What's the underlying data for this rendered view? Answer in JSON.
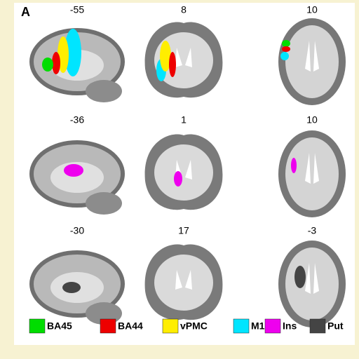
{
  "panel_label": "A",
  "slices": [
    [
      "-55",
      "8",
      "10"
    ],
    [
      "-36",
      "1",
      "10"
    ],
    [
      "-30",
      "17",
      "-3"
    ]
  ],
  "legend": [
    {
      "label": "BA45",
      "color": "#00dd00"
    },
    {
      "label": "BA44",
      "color": "#ee0000"
    },
    {
      "label": "vPMC",
      "color": "#ffee00"
    },
    {
      "label": "M1",
      "color": "#00e5ff"
    },
    {
      "label": "Ins",
      "color": "#ee00ee"
    },
    {
      "label": "Put",
      "color": "#444444"
    }
  ]
}
